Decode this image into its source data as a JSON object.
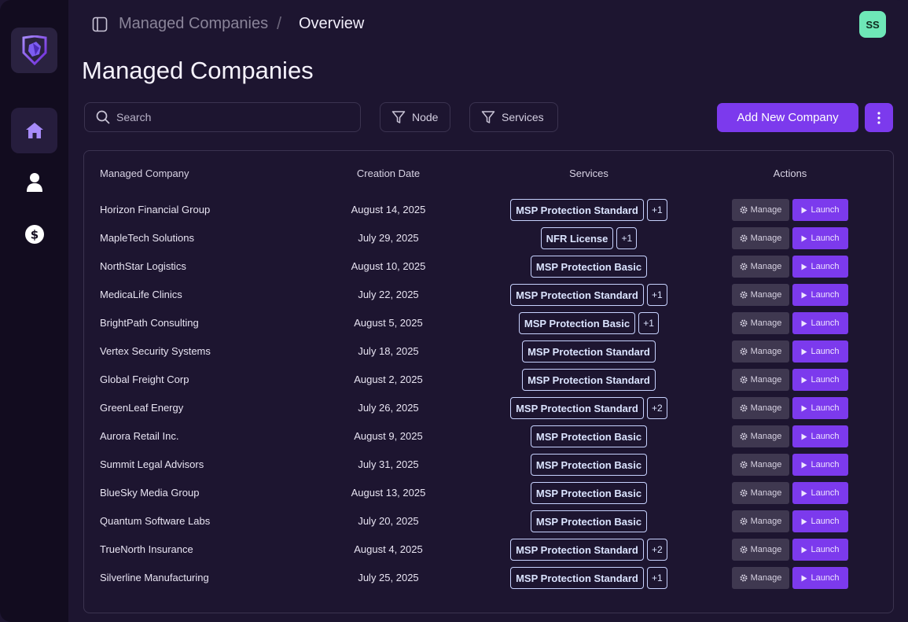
{
  "sidebar": {
    "logo_icon": "shield-logo-icon",
    "items": [
      {
        "name": "home",
        "icon": "home-icon",
        "active": true
      },
      {
        "name": "users",
        "icon": "user-icon",
        "active": false
      },
      {
        "name": "billing",
        "icon": "dollar-icon",
        "active": false
      }
    ]
  },
  "header": {
    "breadcrumb_parent": "Managed Companies",
    "breadcrumb_separator": "/",
    "breadcrumb_current": "Overview",
    "avatar_initials": "SS"
  },
  "page": {
    "title": "Managed Companies"
  },
  "toolbar": {
    "search_placeholder": "Search",
    "node_filter_label": "Node",
    "services_filter_label": "Services",
    "add_button_label": "Add New Company"
  },
  "table": {
    "columns": {
      "company": "Managed Company",
      "date": "Creation Date",
      "services": "Services",
      "actions": "Actions"
    },
    "manage_label": "Manage",
    "launch_label": "Launch",
    "rows": [
      {
        "name": "Horizon Financial Group",
        "date": "August 14, 2025",
        "service": "MSP Protection Standard",
        "more": "+1"
      },
      {
        "name": "MapleTech Solutions",
        "date": "July 29, 2025",
        "service": "NFR License",
        "more": "+1"
      },
      {
        "name": "NorthStar Logistics",
        "date": "August 10, 2025",
        "service": "MSP Protection Basic",
        "more": ""
      },
      {
        "name": "MedicaLife Clinics",
        "date": "July 22, 2025",
        "service": "MSP Protection Standard",
        "more": "+1"
      },
      {
        "name": "BrightPath Consulting",
        "date": "August 5, 2025",
        "service": "MSP Protection Basic",
        "more": "+1"
      },
      {
        "name": "Vertex Security Systems",
        "date": "July 18, 2025",
        "service": "MSP Protection Standard",
        "more": ""
      },
      {
        "name": "Global Freight Corp",
        "date": "August 2, 2025",
        "service": "MSP Protection Standard",
        "more": ""
      },
      {
        "name": "GreenLeaf Energy",
        "date": "July 26, 2025",
        "service": "MSP Protection Standard",
        "more": "+2"
      },
      {
        "name": "Aurora Retail Inc.",
        "date": "August 9, 2025",
        "service": "MSP Protection Basic",
        "more": ""
      },
      {
        "name": "Summit Legal Advisors",
        "date": "July 31, 2025",
        "service": "MSP Protection Basic",
        "more": ""
      },
      {
        "name": "BlueSky Media Group",
        "date": "August 13, 2025",
        "service": "MSP Protection Basic",
        "more": ""
      },
      {
        "name": "Quantum Software Labs",
        "date": "July 20, 2025",
        "service": "MSP Protection Basic",
        "more": ""
      },
      {
        "name": "TrueNorth Insurance",
        "date": "August 4, 2025",
        "service": "MSP Protection Standard",
        "more": "+2"
      },
      {
        "name": "Silverline Manufacturing",
        "date": "July 25, 2025",
        "service": "MSP Protection Standard",
        "more": "+1"
      }
    ]
  },
  "colors": {
    "accent": "#7c3aed",
    "background": "#1d1530",
    "sidebar": "#120c1f",
    "avatar": "#6ee7b7"
  }
}
